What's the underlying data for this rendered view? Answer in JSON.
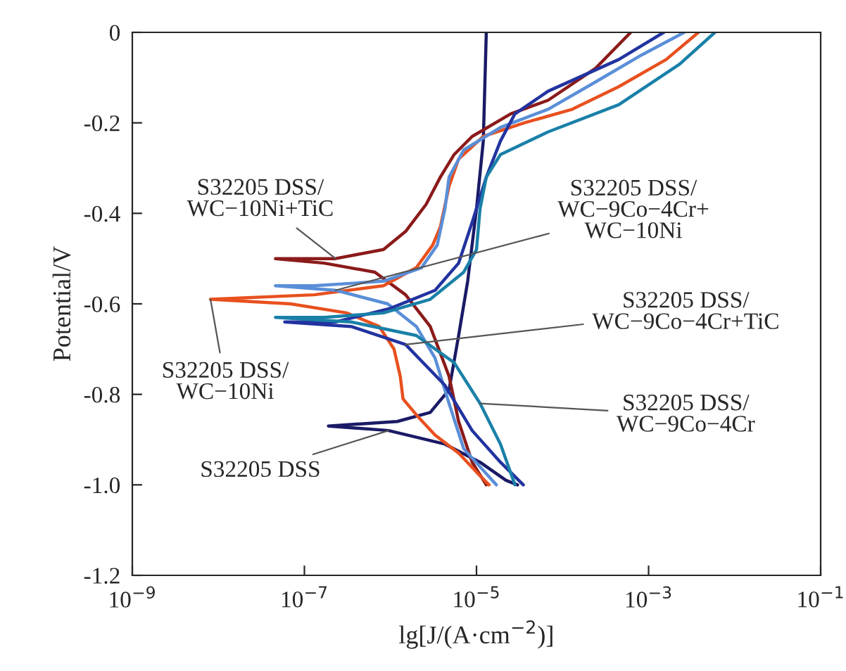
{
  "chart_data": {
    "type": "line",
    "xlabel": "lg[J/(A·cm$^{−2}$)]",
    "ylabel": "Potential/V",
    "log": "x",
    "grid": false,
    "legend": false,
    "line_style": "solid",
    "marker": "none",
    "xlim": [
      1e-09,
      0.1
    ],
    "ylim": [
      -1.2,
      0
    ],
    "xticks": [
      {
        "value": 1e-09,
        "label": "10$^{−9}$"
      },
      {
        "value": 1e-07,
        "label": "10$^{−7}$"
      },
      {
        "value": 1e-05,
        "label": "10$^{−5}$"
      },
      {
        "value": 0.001,
        "label": "10$^{−3}$"
      },
      {
        "value": 0.1,
        "label": "10$^{−1}$"
      }
    ],
    "yticks": [
      -1.2,
      {
        "value": -1,
        "label": "-1.0"
      },
      -0.8,
      -0.6,
      -0.4,
      -0.2,
      0
    ],
    "annotations": [
      {
        "text": "S32205 DSS",
        "x": 9.5e-07,
        "y": -0.88
      },
      {
        "text": "S32205 DSS/\nWC−10Ni+TiC",
        "x": 2.3e-07,
        "y": -0.5
      },
      {
        "text": "S32205 DSS/\nWC−10Ni",
        "x": 8.1e-09,
        "y": -0.59
      },
      {
        "text": "S32205 DSS/\nWC−9Co−4Cr+\nWC−10Ni",
        "x": 2.3e-07,
        "y": -0.57
      },
      {
        "text": "S32205 DSS/\nWC−9Co−4Cr+TiC",
        "x": 1.5e-06,
        "y": -0.69
      },
      {
        "text": "S32205 DSS/\nWC−9Co−4Cr",
        "x": 1.1e-05,
        "y": -0.82
      }
    ],
    "series": [
      {
        "color": "#1a1a66",
        "x": [
          1.3e-05,
          1.2e-05,
          1e-05,
          7.9e-06,
          6.2e-06,
          4.8e-06,
          2.9e-06,
          1.2e-06,
          1.9e-07,
          9.5e-07,
          4.3e-06,
          1.1e-05,
          2.2e-05,
          3e-05
        ],
        "values": [
          0,
          -0.24,
          -0.39,
          -0.55,
          -0.67,
          -0.79,
          -0.84,
          -0.86,
          -0.87,
          -0.88,
          -0.91,
          -0.95,
          -0.99,
          -1.0
        ]
      },
      {
        "color": "#8b1a1a",
        "x": [
          0.00062,
          0.00024,
          6.8e-05,
          2.5e-05,
          8.9e-06,
          5.5e-06,
          3.8e-06,
          2.6e-06,
          1.5e-06,
          8.3e-07,
          2.3e-07,
          4.6e-08,
          1.7e-07,
          6.6e-07,
          1.5e-06,
          2.9e-06,
          4.8e-06,
          6.2e-06,
          8.9e-06,
          1.3e-05
        ],
        "values": [
          0,
          -0.08,
          -0.15,
          -0.18,
          -0.23,
          -0.27,
          -0.32,
          -0.38,
          -0.44,
          -0.48,
          -0.5,
          -0.5,
          -0.51,
          -0.53,
          -0.58,
          -0.65,
          -0.76,
          -0.86,
          -0.95,
          -1.0
        ]
      },
      {
        "color": "#e8501e",
        "x": [
          0.0038,
          0.0016,
          0.00045,
          0.00013,
          3.6e-05,
          1.2e-05,
          6.2e-06,
          4.8e-06,
          3.8e-06,
          3.1e-06,
          2e-06,
          8.3e-07,
          1.3e-07,
          8.1e-09,
          6.9e-08,
          3.1e-07,
          7.4e-07,
          1.1e-06,
          1.3e-06,
          1.4e-06,
          2.1e-06,
          3.3e-06,
          6.2e-06,
          1.1e-05,
          1.4e-05
        ],
        "values": [
          0,
          -0.06,
          -0.12,
          -0.17,
          -0.2,
          -0.23,
          -0.28,
          -0.34,
          -0.43,
          -0.47,
          -0.52,
          -0.56,
          -0.58,
          -0.59,
          -0.6,
          -0.62,
          -0.65,
          -0.7,
          -0.76,
          -0.81,
          -0.85,
          -0.89,
          -0.93,
          -0.98,
          -1.0
        ]
      },
      {
        "color": "#5a8ed8",
        "x": [
          0.0026,
          0.00083,
          0.00024,
          6.8e-05,
          1.9e-05,
          7.1e-06,
          4.8e-06,
          4.3e-06,
          3.5e-06,
          2.3e-06,
          8.3e-07,
          1.3e-07,
          4.6e-08,
          2.3e-07,
          9.3e-07,
          2e-06,
          3.3e-06,
          4.8e-06,
          7.1e-06,
          1.7e-05
        ],
        "values": [
          0,
          -0.05,
          -0.11,
          -0.17,
          -0.21,
          -0.26,
          -0.32,
          -0.39,
          -0.47,
          -0.52,
          -0.55,
          -0.56,
          -0.56,
          -0.57,
          -0.6,
          -0.65,
          -0.72,
          -0.82,
          -0.92,
          -1.0
        ]
      },
      {
        "color": "#2233a0",
        "x": [
          0.0015,
          0.00045,
          6.8e-05,
          2.8e-05,
          1.9e-05,
          1.3e-05,
          8.9e-06,
          6.2e-06,
          3.3e-06,
          1e-06,
          2.3e-07,
          5.9e-08,
          3.5e-07,
          1.5e-06,
          4.3e-06,
          8.9e-06,
          1.9e-05,
          3.5e-05
        ],
        "values": [
          0,
          -0.06,
          -0.13,
          -0.18,
          -0.24,
          -0.32,
          -0.42,
          -0.51,
          -0.57,
          -0.61,
          -0.64,
          -0.64,
          -0.65,
          -0.69,
          -0.78,
          -0.88,
          -0.95,
          -1.0
        ]
      },
      {
        "color": "#1a80a8",
        "x": [
          0.0059,
          0.0023,
          0.00045,
          6.8e-05,
          1.9e-05,
          1.3e-05,
          1.1e-05,
          1e-05,
          7.1e-06,
          2.9e-06,
          8.3e-07,
          1.7e-07,
          4.6e-08,
          3.5e-07,
          2e-06,
          5.5e-06,
          1.1e-05,
          1.9e-05,
          2.8e-05
        ],
        "values": [
          0,
          -0.07,
          -0.16,
          -0.22,
          -0.27,
          -0.32,
          -0.39,
          -0.48,
          -0.53,
          -0.59,
          -0.62,
          -0.63,
          -0.63,
          -0.64,
          -0.67,
          -0.73,
          -0.82,
          -0.91,
          -1.0
        ]
      }
    ]
  }
}
